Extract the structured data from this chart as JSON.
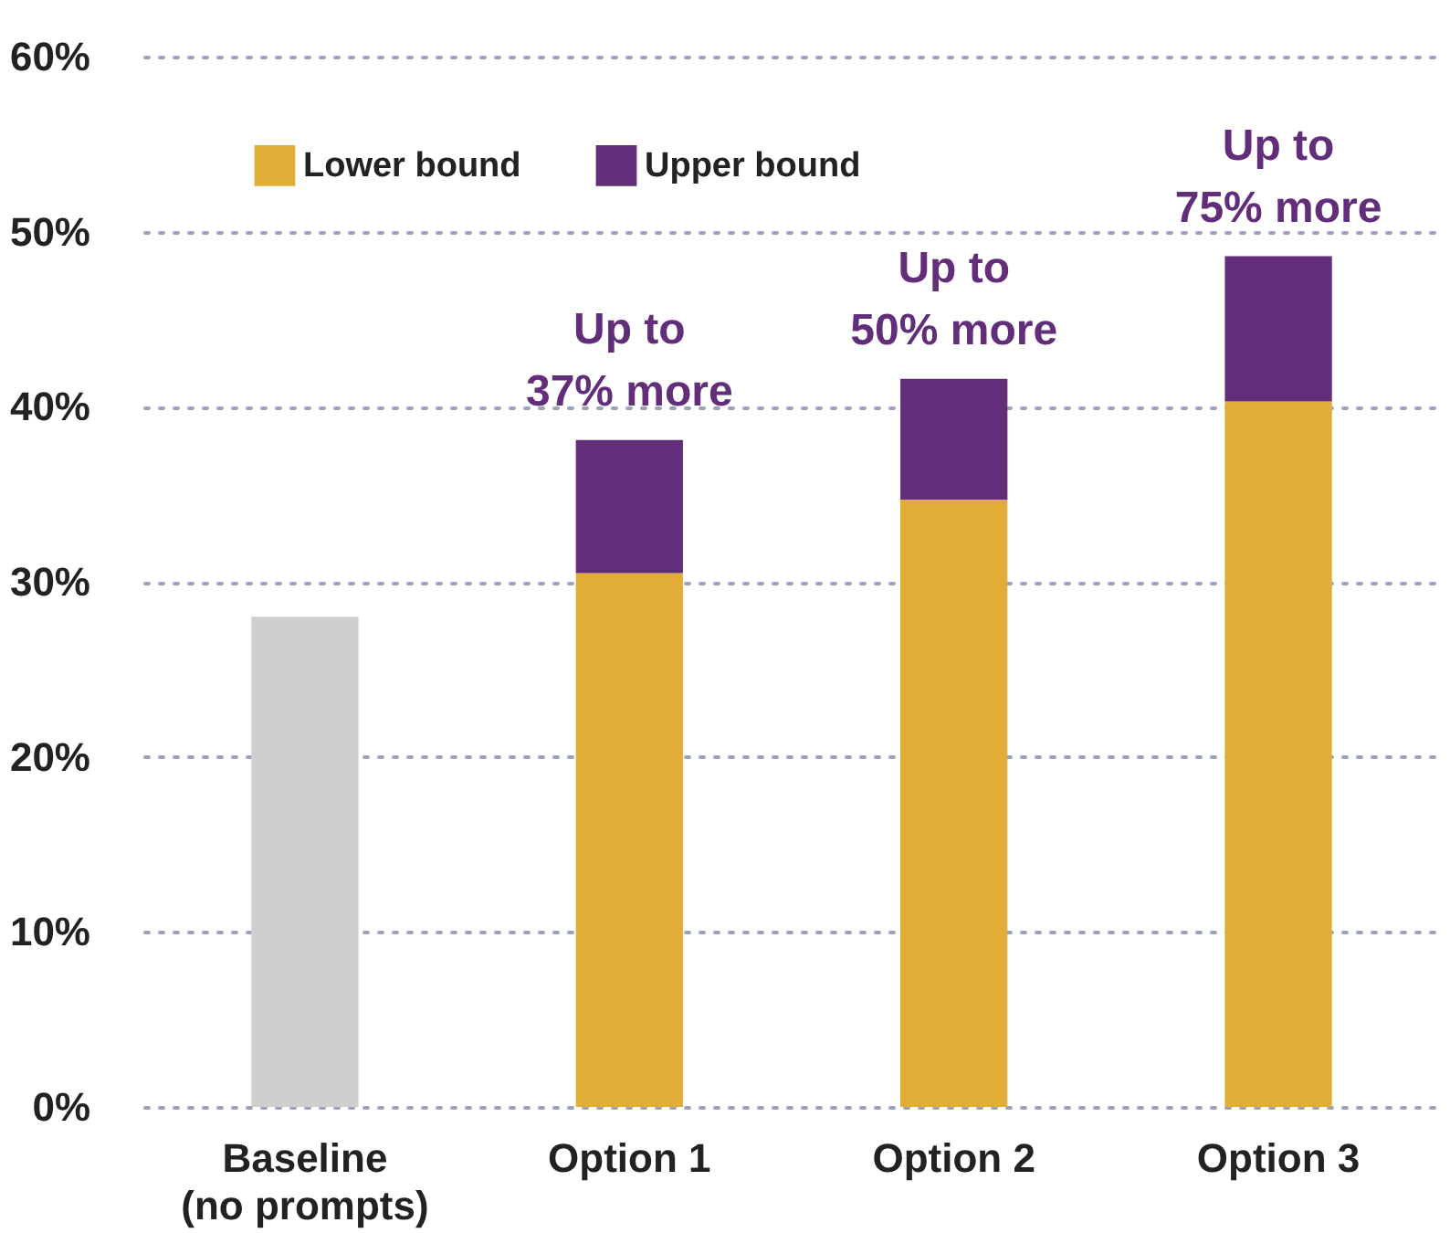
{
  "chart_data": {
    "type": "bar",
    "stacked": true,
    "categories": [
      "Baseline\n(no prompts)",
      "Option 1",
      "Option 2",
      "Option 3"
    ],
    "series": [
      {
        "color": "#d0cecf",
        "values": [
          28,
          null,
          null,
          null
        ]
      },
      {
        "name": "Lower bound",
        "color": "#e1ad37",
        "values": [
          null,
          30.5,
          34.7,
          40.3
        ]
      },
      {
        "name": "Upper bound",
        "color": "#622d79",
        "values": [
          null,
          7.6,
          6.9,
          8.3
        ]
      }
    ],
    "ylim": [
      0,
      60
    ],
    "yticks": [
      {
        "value": 0,
        "label": "0%"
      },
      {
        "value": 10,
        "label": "10%"
      },
      {
        "value": 20,
        "label": "20%"
      },
      {
        "value": 30,
        "label": "30%"
      },
      {
        "value": 40,
        "label": "40%"
      },
      {
        "value": 50,
        "label": "50%"
      },
      {
        "value": 60,
        "label": "60%"
      }
    ],
    "grid": "y",
    "legend": "top",
    "annotations": [
      {
        "text": "Up to\n37% more",
        "x": "Option 1",
        "y": 38.1
      },
      {
        "text": "Up to\n50% more",
        "x": "Option 2",
        "y": 41.6
      },
      {
        "text": "Up to\n75% more",
        "x": "Option 3",
        "y": 48.6
      }
    ]
  }
}
